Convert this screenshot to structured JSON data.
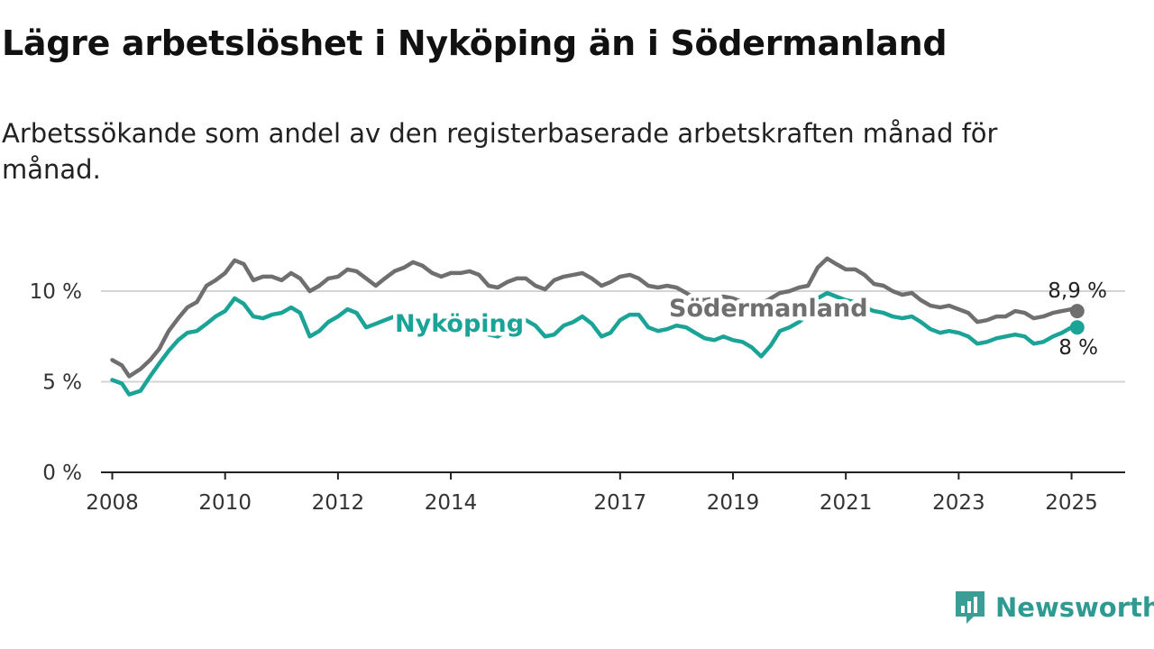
{
  "title": "Lägre arbetslöshet i Nyköping än i Södermanland",
  "subtitle": "Arbetssökande som andel av den registerbaserade arbetskraften månad för månad.",
  "brand": {
    "name": "Newsworthy",
    "color": "#3a9e96",
    "icon": "newsworthy-logo-icon"
  },
  "chart_data": {
    "type": "line",
    "x_unit": "year",
    "xlim": [
      2007.8,
      2025.95
    ],
    "ylim": [
      0,
      12
    ],
    "y_ticks": [
      {
        "value": 0,
        "label": "0 %"
      },
      {
        "value": 5,
        "label": "5 %"
      },
      {
        "value": 10,
        "label": "10 %"
      }
    ],
    "x_ticks": [
      {
        "value": 2008,
        "label": "2008"
      },
      {
        "value": 2010,
        "label": "2010"
      },
      {
        "value": 2012,
        "label": "2012"
      },
      {
        "value": 2014,
        "label": "2014"
      },
      {
        "value": 2017,
        "label": "2017"
      },
      {
        "value": 2019,
        "label": "2019"
      },
      {
        "value": 2021,
        "label": "2021"
      },
      {
        "value": 2023,
        "label": "2023"
      },
      {
        "value": 2025,
        "label": "2025"
      }
    ],
    "grid": true,
    "series": [
      {
        "name": "Södermanland",
        "color": "#6f6f6f",
        "end_label": "8,9 %",
        "points": [
          [
            2008.0,
            6.2
          ],
          [
            2008.17,
            5.9
          ],
          [
            2008.3,
            5.3
          ],
          [
            2008.5,
            5.7
          ],
          [
            2008.67,
            6.2
          ],
          [
            2008.83,
            6.8
          ],
          [
            2009.0,
            7.8
          ],
          [
            2009.17,
            8.5
          ],
          [
            2009.33,
            9.1
          ],
          [
            2009.5,
            9.4
          ],
          [
            2009.67,
            10.3
          ],
          [
            2009.83,
            10.6
          ],
          [
            2010.0,
            11.0
          ],
          [
            2010.17,
            11.7
          ],
          [
            2010.33,
            11.5
          ],
          [
            2010.5,
            10.6
          ],
          [
            2010.67,
            10.8
          ],
          [
            2010.83,
            10.8
          ],
          [
            2011.0,
            10.6
          ],
          [
            2011.17,
            11.0
          ],
          [
            2011.33,
            10.7
          ],
          [
            2011.5,
            10.0
          ],
          [
            2011.67,
            10.3
          ],
          [
            2011.83,
            10.7
          ],
          [
            2012.0,
            10.8
          ],
          [
            2012.17,
            11.2
          ],
          [
            2012.33,
            11.1
          ],
          [
            2012.5,
            10.7
          ],
          [
            2012.67,
            10.3
          ],
          [
            2012.83,
            10.7
          ],
          [
            2013.0,
            11.1
          ],
          [
            2013.17,
            11.3
          ],
          [
            2013.33,
            11.6
          ],
          [
            2013.5,
            11.4
          ],
          [
            2013.67,
            11.0
          ],
          [
            2013.83,
            10.8
          ],
          [
            2014.0,
            11.0
          ],
          [
            2014.17,
            11.0
          ],
          [
            2014.33,
            11.1
          ],
          [
            2014.5,
            10.9
          ],
          [
            2014.67,
            10.3
          ],
          [
            2014.83,
            10.2
          ],
          [
            2015.0,
            10.5
          ],
          [
            2015.17,
            10.7
          ],
          [
            2015.33,
            10.7
          ],
          [
            2015.5,
            10.3
          ],
          [
            2015.67,
            10.1
          ],
          [
            2015.83,
            10.6
          ],
          [
            2016.0,
            10.8
          ],
          [
            2016.17,
            10.9
          ],
          [
            2016.33,
            11.0
          ],
          [
            2016.5,
            10.7
          ],
          [
            2016.67,
            10.3
          ],
          [
            2016.83,
            10.5
          ],
          [
            2017.0,
            10.8
          ],
          [
            2017.17,
            10.9
          ],
          [
            2017.33,
            10.7
          ],
          [
            2017.5,
            10.3
          ],
          [
            2017.67,
            10.2
          ],
          [
            2017.83,
            10.3
          ],
          [
            2018.0,
            10.2
          ],
          [
            2018.17,
            9.9
          ],
          [
            2018.33,
            9.6
          ],
          [
            2018.5,
            9.5
          ],
          [
            2018.67,
            9.6
          ],
          [
            2018.83,
            9.7
          ],
          [
            2019.0,
            9.6
          ],
          [
            2019.17,
            9.4
          ],
          [
            2019.33,
            9.3
          ],
          [
            2019.5,
            9.3
          ],
          [
            2019.67,
            9.6
          ],
          [
            2019.83,
            9.9
          ],
          [
            2020.0,
            10.0
          ],
          [
            2020.17,
            10.2
          ],
          [
            2020.33,
            10.3
          ],
          [
            2020.5,
            11.3
          ],
          [
            2020.67,
            11.8
          ],
          [
            2020.83,
            11.5
          ],
          [
            2021.0,
            11.2
          ],
          [
            2021.17,
            11.2
          ],
          [
            2021.33,
            10.9
          ],
          [
            2021.5,
            10.4
          ],
          [
            2021.67,
            10.3
          ],
          [
            2021.83,
            10.0
          ],
          [
            2022.0,
            9.8
          ],
          [
            2022.17,
            9.9
          ],
          [
            2022.33,
            9.5
          ],
          [
            2022.5,
            9.2
          ],
          [
            2022.67,
            9.1
          ],
          [
            2022.83,
            9.2
          ],
          [
            2023.0,
            9.0
          ],
          [
            2023.17,
            8.8
          ],
          [
            2023.33,
            8.3
          ],
          [
            2023.5,
            8.4
          ],
          [
            2023.67,
            8.6
          ],
          [
            2023.83,
            8.6
          ],
          [
            2024.0,
            8.9
          ],
          [
            2024.17,
            8.8
          ],
          [
            2024.33,
            8.5
          ],
          [
            2024.5,
            8.6
          ],
          [
            2024.67,
            8.8
          ],
          [
            2024.83,
            8.9
          ],
          [
            2025.0,
            9.0
          ],
          [
            2025.1,
            8.9
          ]
        ]
      },
      {
        "name": "Nyköping",
        "color": "#1aa396",
        "end_label": "8 %",
        "points": [
          [
            2008.0,
            5.1
          ],
          [
            2008.17,
            4.9
          ],
          [
            2008.3,
            4.3
          ],
          [
            2008.5,
            4.5
          ],
          [
            2008.67,
            5.3
          ],
          [
            2008.83,
            6.0
          ],
          [
            2009.0,
            6.7
          ],
          [
            2009.17,
            7.3
          ],
          [
            2009.33,
            7.7
          ],
          [
            2009.5,
            7.8
          ],
          [
            2009.67,
            8.2
          ],
          [
            2009.83,
            8.6
          ],
          [
            2010.0,
            8.9
          ],
          [
            2010.17,
            9.6
          ],
          [
            2010.33,
            9.3
          ],
          [
            2010.5,
            8.6
          ],
          [
            2010.67,
            8.5
          ],
          [
            2010.83,
            8.7
          ],
          [
            2011.0,
            8.8
          ],
          [
            2011.17,
            9.1
          ],
          [
            2011.33,
            8.8
          ],
          [
            2011.5,
            7.5
          ],
          [
            2011.67,
            7.8
          ],
          [
            2011.83,
            8.3
          ],
          [
            2012.0,
            8.6
          ],
          [
            2012.17,
            9.0
          ],
          [
            2012.33,
            8.8
          ],
          [
            2012.5,
            8.0
          ],
          [
            2012.67,
            8.2
          ],
          [
            2012.83,
            8.4
          ],
          [
            2013.0,
            8.6
          ],
          [
            2013.17,
            8.5
          ],
          [
            2013.33,
            8.3
          ],
          [
            2013.5,
            8.2
          ],
          [
            2013.67,
            7.9
          ],
          [
            2013.83,
            7.8
          ],
          [
            2014.0,
            8.0
          ],
          [
            2014.17,
            8.2
          ],
          [
            2014.33,
            8.3
          ],
          [
            2014.5,
            7.9
          ],
          [
            2014.67,
            7.6
          ],
          [
            2014.83,
            7.5
          ],
          [
            2015.0,
            7.8
          ],
          [
            2015.17,
            8.1
          ],
          [
            2015.33,
            8.4
          ],
          [
            2015.5,
            8.1
          ],
          [
            2015.67,
            7.5
          ],
          [
            2015.83,
            7.6
          ],
          [
            2016.0,
            8.1
          ],
          [
            2016.17,
            8.3
          ],
          [
            2016.33,
            8.6
          ],
          [
            2016.5,
            8.2
          ],
          [
            2016.67,
            7.5
          ],
          [
            2016.83,
            7.7
          ],
          [
            2017.0,
            8.4
          ],
          [
            2017.17,
            8.7
          ],
          [
            2017.33,
            8.7
          ],
          [
            2017.5,
            8.0
          ],
          [
            2017.67,
            7.8
          ],
          [
            2017.83,
            7.9
          ],
          [
            2018.0,
            8.1
          ],
          [
            2018.17,
            8.0
          ],
          [
            2018.33,
            7.7
          ],
          [
            2018.5,
            7.4
          ],
          [
            2018.67,
            7.3
          ],
          [
            2018.83,
            7.5
          ],
          [
            2019.0,
            7.3
          ],
          [
            2019.17,
            7.2
          ],
          [
            2019.33,
            6.9
          ],
          [
            2019.5,
            6.4
          ],
          [
            2019.67,
            7.0
          ],
          [
            2019.83,
            7.8
          ],
          [
            2020.0,
            8.0
          ],
          [
            2020.17,
            8.3
          ],
          [
            2020.33,
            8.7
          ],
          [
            2020.5,
            9.6
          ],
          [
            2020.67,
            9.9
          ],
          [
            2020.83,
            9.7
          ],
          [
            2021.0,
            9.5
          ],
          [
            2021.17,
            9.4
          ],
          [
            2021.33,
            9.1
          ],
          [
            2021.5,
            8.9
          ],
          [
            2021.67,
            8.8
          ],
          [
            2021.83,
            8.6
          ],
          [
            2022.0,
            8.5
          ],
          [
            2022.17,
            8.6
          ],
          [
            2022.33,
            8.3
          ],
          [
            2022.5,
            7.9
          ],
          [
            2022.67,
            7.7
          ],
          [
            2022.83,
            7.8
          ],
          [
            2023.0,
            7.7
          ],
          [
            2023.17,
            7.5
          ],
          [
            2023.33,
            7.1
          ],
          [
            2023.5,
            7.2
          ],
          [
            2023.67,
            7.4
          ],
          [
            2023.83,
            7.5
          ],
          [
            2024.0,
            7.6
          ],
          [
            2024.17,
            7.5
          ],
          [
            2024.33,
            7.1
          ],
          [
            2024.5,
            7.2
          ],
          [
            2024.67,
            7.5
          ],
          [
            2024.83,
            7.7
          ],
          [
            2025.0,
            8.0
          ],
          [
            2025.1,
            8.0
          ]
        ]
      }
    ]
  }
}
